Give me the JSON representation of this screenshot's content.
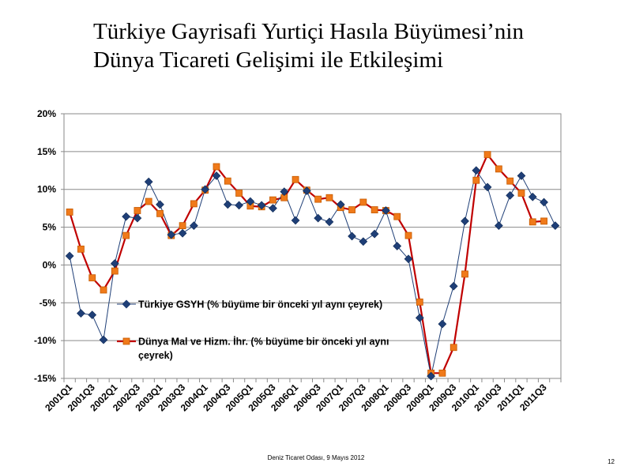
{
  "title": {
    "line1": "Türkiye Gayrisafi Yurtiçi Hasıla Büyümesi’nin",
    "line2": "Dünya Ticareti Gelişimi ile Etkileşimi"
  },
  "footer": "Deniz Ticaret Odası, 9 Mayıs 2012",
  "page_number": "12",
  "chart_data": {
    "type": "line",
    "title": "",
    "xlabel": "",
    "ylabel": "",
    "ylim": [
      -15,
      20
    ],
    "yticks": [
      -15,
      -10,
      -5,
      0,
      5,
      10,
      15,
      20
    ],
    "ytick_labels": [
      "-15%",
      "-10%",
      "-5%",
      "0%",
      "5%",
      "10%",
      "15%",
      "20%"
    ],
    "grid": true,
    "legend_position": "lower-left inside plot",
    "x": [
      "2001Q1",
      "2001Q2",
      "2001Q3",
      "2001Q4",
      "2002Q1",
      "2002Q2",
      "2002Q3",
      "2002Q4",
      "2003Q1",
      "2003Q2",
      "2003Q3",
      "2003Q4",
      "2004Q1",
      "2004Q2",
      "2004Q3",
      "2004Q4",
      "2005Q1",
      "2005Q2",
      "2005Q3",
      "2005Q4",
      "2006Q1",
      "2006Q2",
      "2006Q3",
      "2006Q4",
      "2007Q1",
      "2007Q2",
      "2007Q3",
      "2007Q4",
      "2008Q1",
      "2008Q2",
      "2008Q3",
      "2008Q4",
      "2009Q1",
      "2009Q2",
      "2009Q3",
      "2009Q4",
      "2010Q1",
      "2010Q2",
      "2010Q3",
      "2010Q4",
      "2011Q1",
      "2011Q2",
      "2011Q3",
      "2011Q4"
    ],
    "xtick_labels": [
      "2001Q1",
      "2001Q3",
      "2002Q1",
      "2002Q3",
      "2003Q1",
      "2003Q3",
      "2004Q1",
      "2004Q3",
      "2005Q1",
      "2005Q3",
      "2006Q1",
      "2006Q3",
      "2007Q1",
      "2007Q3",
      "2008Q1",
      "2008Q3",
      "2009Q1",
      "2009Q3",
      "2010Q1",
      "2010Q3",
      "2011Q1",
      "2011Q3"
    ],
    "series": [
      {
        "name": "Türkiye GSYH (% büyüme bir önceki yıl aynı çeyrek)",
        "color": "#1f3f77",
        "marker": "diamond",
        "values": [
          1.2,
          -6.4,
          -6.6,
          -9.9,
          0.2,
          6.4,
          6.2,
          11.0,
          8.0,
          4.0,
          4.2,
          5.2,
          10.0,
          11.8,
          8.0,
          7.9,
          8.4,
          7.9,
          7.5,
          9.7,
          5.9,
          9.8,
          6.2,
          5.7,
          8.0,
          3.8,
          3.1,
          4.1,
          7.2,
          2.5,
          0.8,
          -7.0,
          -14.7,
          -7.8,
          -2.8,
          5.8,
          12.5,
          10.3,
          5.2,
          9.2,
          11.8,
          9.0,
          8.3,
          5.2
        ]
      },
      {
        "name": "Dünya Mal ve Hizm. İhr. (% büyüme bir önceki yıl aynı çeyrek)",
        "color": "#c00000",
        "marker_color": "#f07a1a",
        "marker": "square",
        "values": [
          7.0,
          2.1,
          -1.7,
          -3.3,
          -0.8,
          3.9,
          7.2,
          8.4,
          6.8,
          3.9,
          5.2,
          8.1,
          9.9,
          13.0,
          11.1,
          9.5,
          7.8,
          7.7,
          8.6,
          8.9,
          11.3,
          9.9,
          8.7,
          8.9,
          7.6,
          7.3,
          8.3,
          7.3,
          7.2,
          6.4,
          3.9,
          -4.9,
          -14.3,
          -14.3,
          -10.9,
          -1.2,
          11.2,
          14.6,
          12.7,
          11.1,
          9.5,
          5.7,
          5.8,
          null
        ]
      }
    ],
    "legend": {
      "gdp_label": "Türkiye GSYH (% büyüme bir önceki yıl aynı çeyrek)",
      "trade_label_line1": "Dünya Mal ve Hizm. İhr. (% büyüme bir önceki yıl aynı",
      "trade_label_line2": "çeyrek)"
    }
  }
}
